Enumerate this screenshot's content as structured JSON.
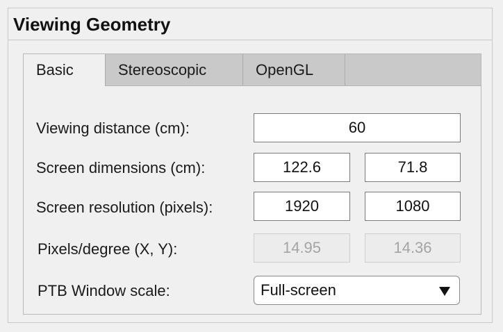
{
  "panel": {
    "title": "Viewing Geometry"
  },
  "tabs": [
    {
      "label": "Basic",
      "active": true
    },
    {
      "label": "Stereoscopic",
      "active": false
    },
    {
      "label": "OpenGL",
      "active": false
    }
  ],
  "basic": {
    "viewing_distance": {
      "label": "Viewing distance (cm):",
      "value": "60"
    },
    "screen_dimensions": {
      "label": "Screen dimensions (cm):",
      "width": "122.6",
      "height": "71.8"
    },
    "screen_resolution": {
      "label": "Screen resolution (pixels):",
      "x": "1920",
      "y": "1080"
    },
    "pixels_per_degree": {
      "label": "Pixels/degree (X, Y):",
      "x": "14.95",
      "y": "14.36"
    },
    "window_scale": {
      "label": "PTB Window scale:",
      "selected": "Full-screen",
      "icon": "dropdown-arrow-icon"
    }
  }
}
